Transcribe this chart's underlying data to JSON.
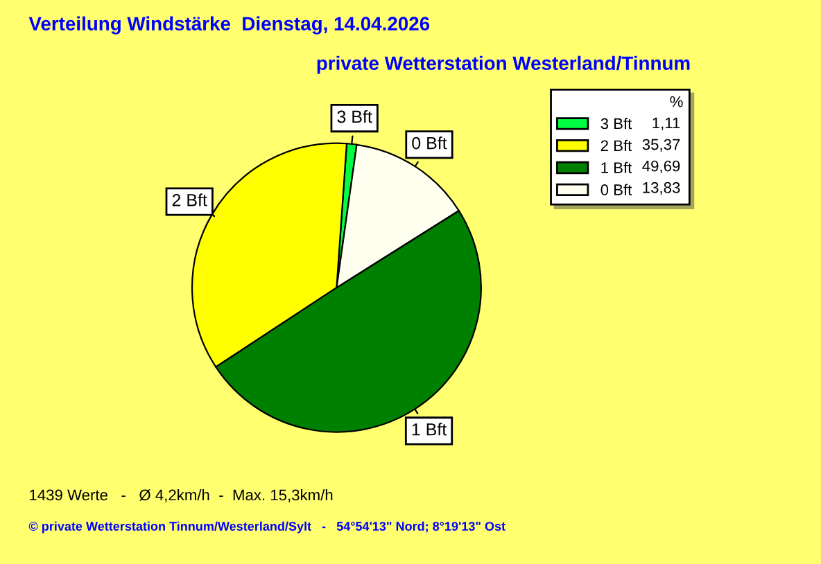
{
  "chart_data": {
    "type": "pie",
    "title": "Verteilung Windstärke  Dienstag, 14.04.2026",
    "subtitle": "private Wetterstation Westerland/Tinnum",
    "categories": [
      "3 Bft",
      "2 Bft",
      "1 Bft",
      "0 Bft"
    ],
    "values": [
      1.11,
      35.37,
      49.69,
      13.83
    ],
    "value_labels": [
      "1,11",
      "35,37",
      "49,69",
      "13,83"
    ],
    "colors": [
      "#00ff40",
      "#ffff00",
      "#008000",
      "#fffff0"
    ],
    "legend": "top right",
    "legend_title": "%",
    "annotations": [
      "1439 Werte   -   Ø 4,2km/h  -  Max. 15,3km/h",
      "© private Wetterstation Tinnum/Westerland/Sylt   -   54°54'13\" Nord; 8°19'13\" Ost"
    ]
  }
}
